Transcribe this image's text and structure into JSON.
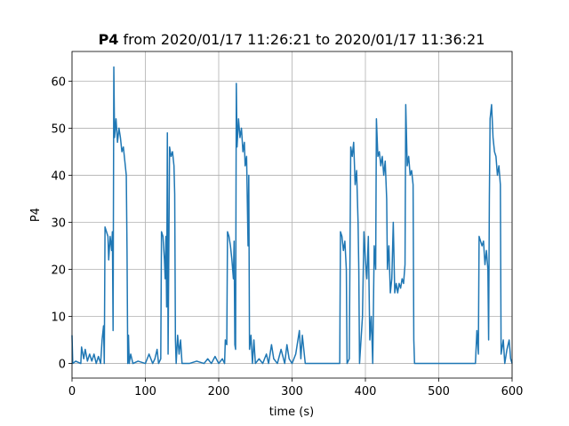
{
  "chart_data": {
    "type": "line",
    "title_bold": "P4",
    "title": "from 2020/01/17 11:26:21 to 2020/01/17 11:36:21",
    "xlabel": "time (s)",
    "ylabel": "P4",
    "xlim": [
      0,
      600
    ],
    "ylim": [
      -3.1,
      66.3
    ],
    "xticks": [
      0,
      100,
      200,
      300,
      400,
      500,
      600
    ],
    "yticks": [
      0,
      10,
      20,
      30,
      40,
      50,
      60
    ],
    "grid": true,
    "series": [
      {
        "name": "P4",
        "color": "#1f77b4",
        "x": [
          0,
          1,
          5,
          12,
          13,
          16,
          18,
          21,
          24,
          27,
          30,
          33,
          36,
          39,
          41,
          43,
          44,
          45,
          47,
          49,
          50,
          52,
          54,
          55,
          56,
          57,
          58,
          60,
          62,
          64,
          66,
          68,
          70,
          72,
          74,
          75,
          76,
          77,
          78,
          80,
          83,
          90,
          100,
          105,
          110,
          113,
          116,
          118,
          121,
          122,
          124,
          126,
          127,
          128,
          129,
          130,
          131,
          133,
          135,
          137,
          139,
          140,
          141,
          142,
          144,
          146,
          148,
          150,
          160,
          170,
          180,
          185,
          190,
          195,
          200,
          205,
          208,
          209,
          211,
          212,
          214,
          216,
          218,
          220,
          221,
          222,
          223,
          224,
          225,
          227,
          229,
          231,
          233,
          235,
          236,
          238,
          240,
          241,
          242,
          244,
          246,
          248,
          250,
          255,
          260,
          265,
          268,
          272,
          275,
          280,
          285,
          290,
          293,
          296,
          300,
          305,
          310,
          312,
          314,
          318,
          320,
          365,
          366,
          368,
          370,
          372,
          374,
          375,
          378,
          380,
          382,
          384,
          386,
          388,
          390,
          391,
          392,
          396,
          398,
          400,
          402,
          404,
          406,
          408,
          410,
          412,
          414,
          415,
          417,
          419,
          421,
          423,
          425,
          427,
          429,
          430,
          432,
          434,
          436,
          438,
          440,
          442,
          444,
          446,
          448,
          450,
          452,
          454,
          455,
          457,
          459,
          461,
          463,
          465,
          466,
          467,
          550,
          552,
          554,
          555,
          557,
          559,
          561,
          563,
          565,
          567,
          568,
          569,
          570,
          572,
          574,
          576,
          578,
          580,
          582,
          584,
          585,
          588,
          590,
          593,
          596,
          598,
          600
        ],
        "values": [
          6,
          0,
          0.5,
          0,
          3.5,
          1,
          3,
          0.5,
          2,
          0.5,
          2,
          0,
          1.5,
          0,
          5,
          8,
          0,
          29,
          28,
          27,
          22,
          27,
          24,
          28,
          7,
          63,
          48,
          52,
          47,
          50,
          48,
          45,
          46,
          43,
          40,
          24,
          0,
          6,
          0,
          2,
          0,
          0.5,
          0,
          2,
          0,
          1,
          3,
          0,
          1,
          28,
          27,
          22,
          18,
          27,
          12,
          49,
          2,
          46,
          44,
          45,
          42,
          36,
          5,
          0,
          6,
          2,
          5,
          0,
          0,
          0.5,
          0,
          1,
          0,
          1.5,
          0,
          1,
          0,
          5,
          4,
          28,
          27,
          25,
          22,
          18,
          26,
          4,
          3,
          59.5,
          46,
          52,
          48,
          50,
          45,
          47,
          42,
          44,
          25,
          40,
          3,
          6,
          0,
          5,
          0,
          1,
          0,
          2,
          0,
          4,
          1,
          0,
          3,
          0,
          4,
          1,
          0,
          2,
          7,
          1,
          6,
          0,
          0,
          0,
          28,
          27,
          24,
          26,
          20,
          0,
          1,
          46,
          44,
          47,
          38,
          41,
          30,
          20,
          0,
          10,
          28,
          22,
          18,
          27,
          5,
          10,
          0,
          25,
          20,
          52,
          44,
          45,
          42,
          44,
          40,
          43,
          35,
          20,
          25,
          15,
          18,
          30,
          15,
          17,
          15,
          17,
          16,
          18,
          17,
          21,
          55,
          42,
          44,
          40,
          41,
          38,
          5,
          0,
          0,
          7,
          2,
          27,
          26,
          25,
          26,
          21,
          24,
          20,
          5,
          35,
          52,
          55,
          48,
          45,
          44,
          40,
          42,
          38,
          2,
          5,
          0,
          3,
          5,
          1,
          0
        ]
      }
    ]
  }
}
